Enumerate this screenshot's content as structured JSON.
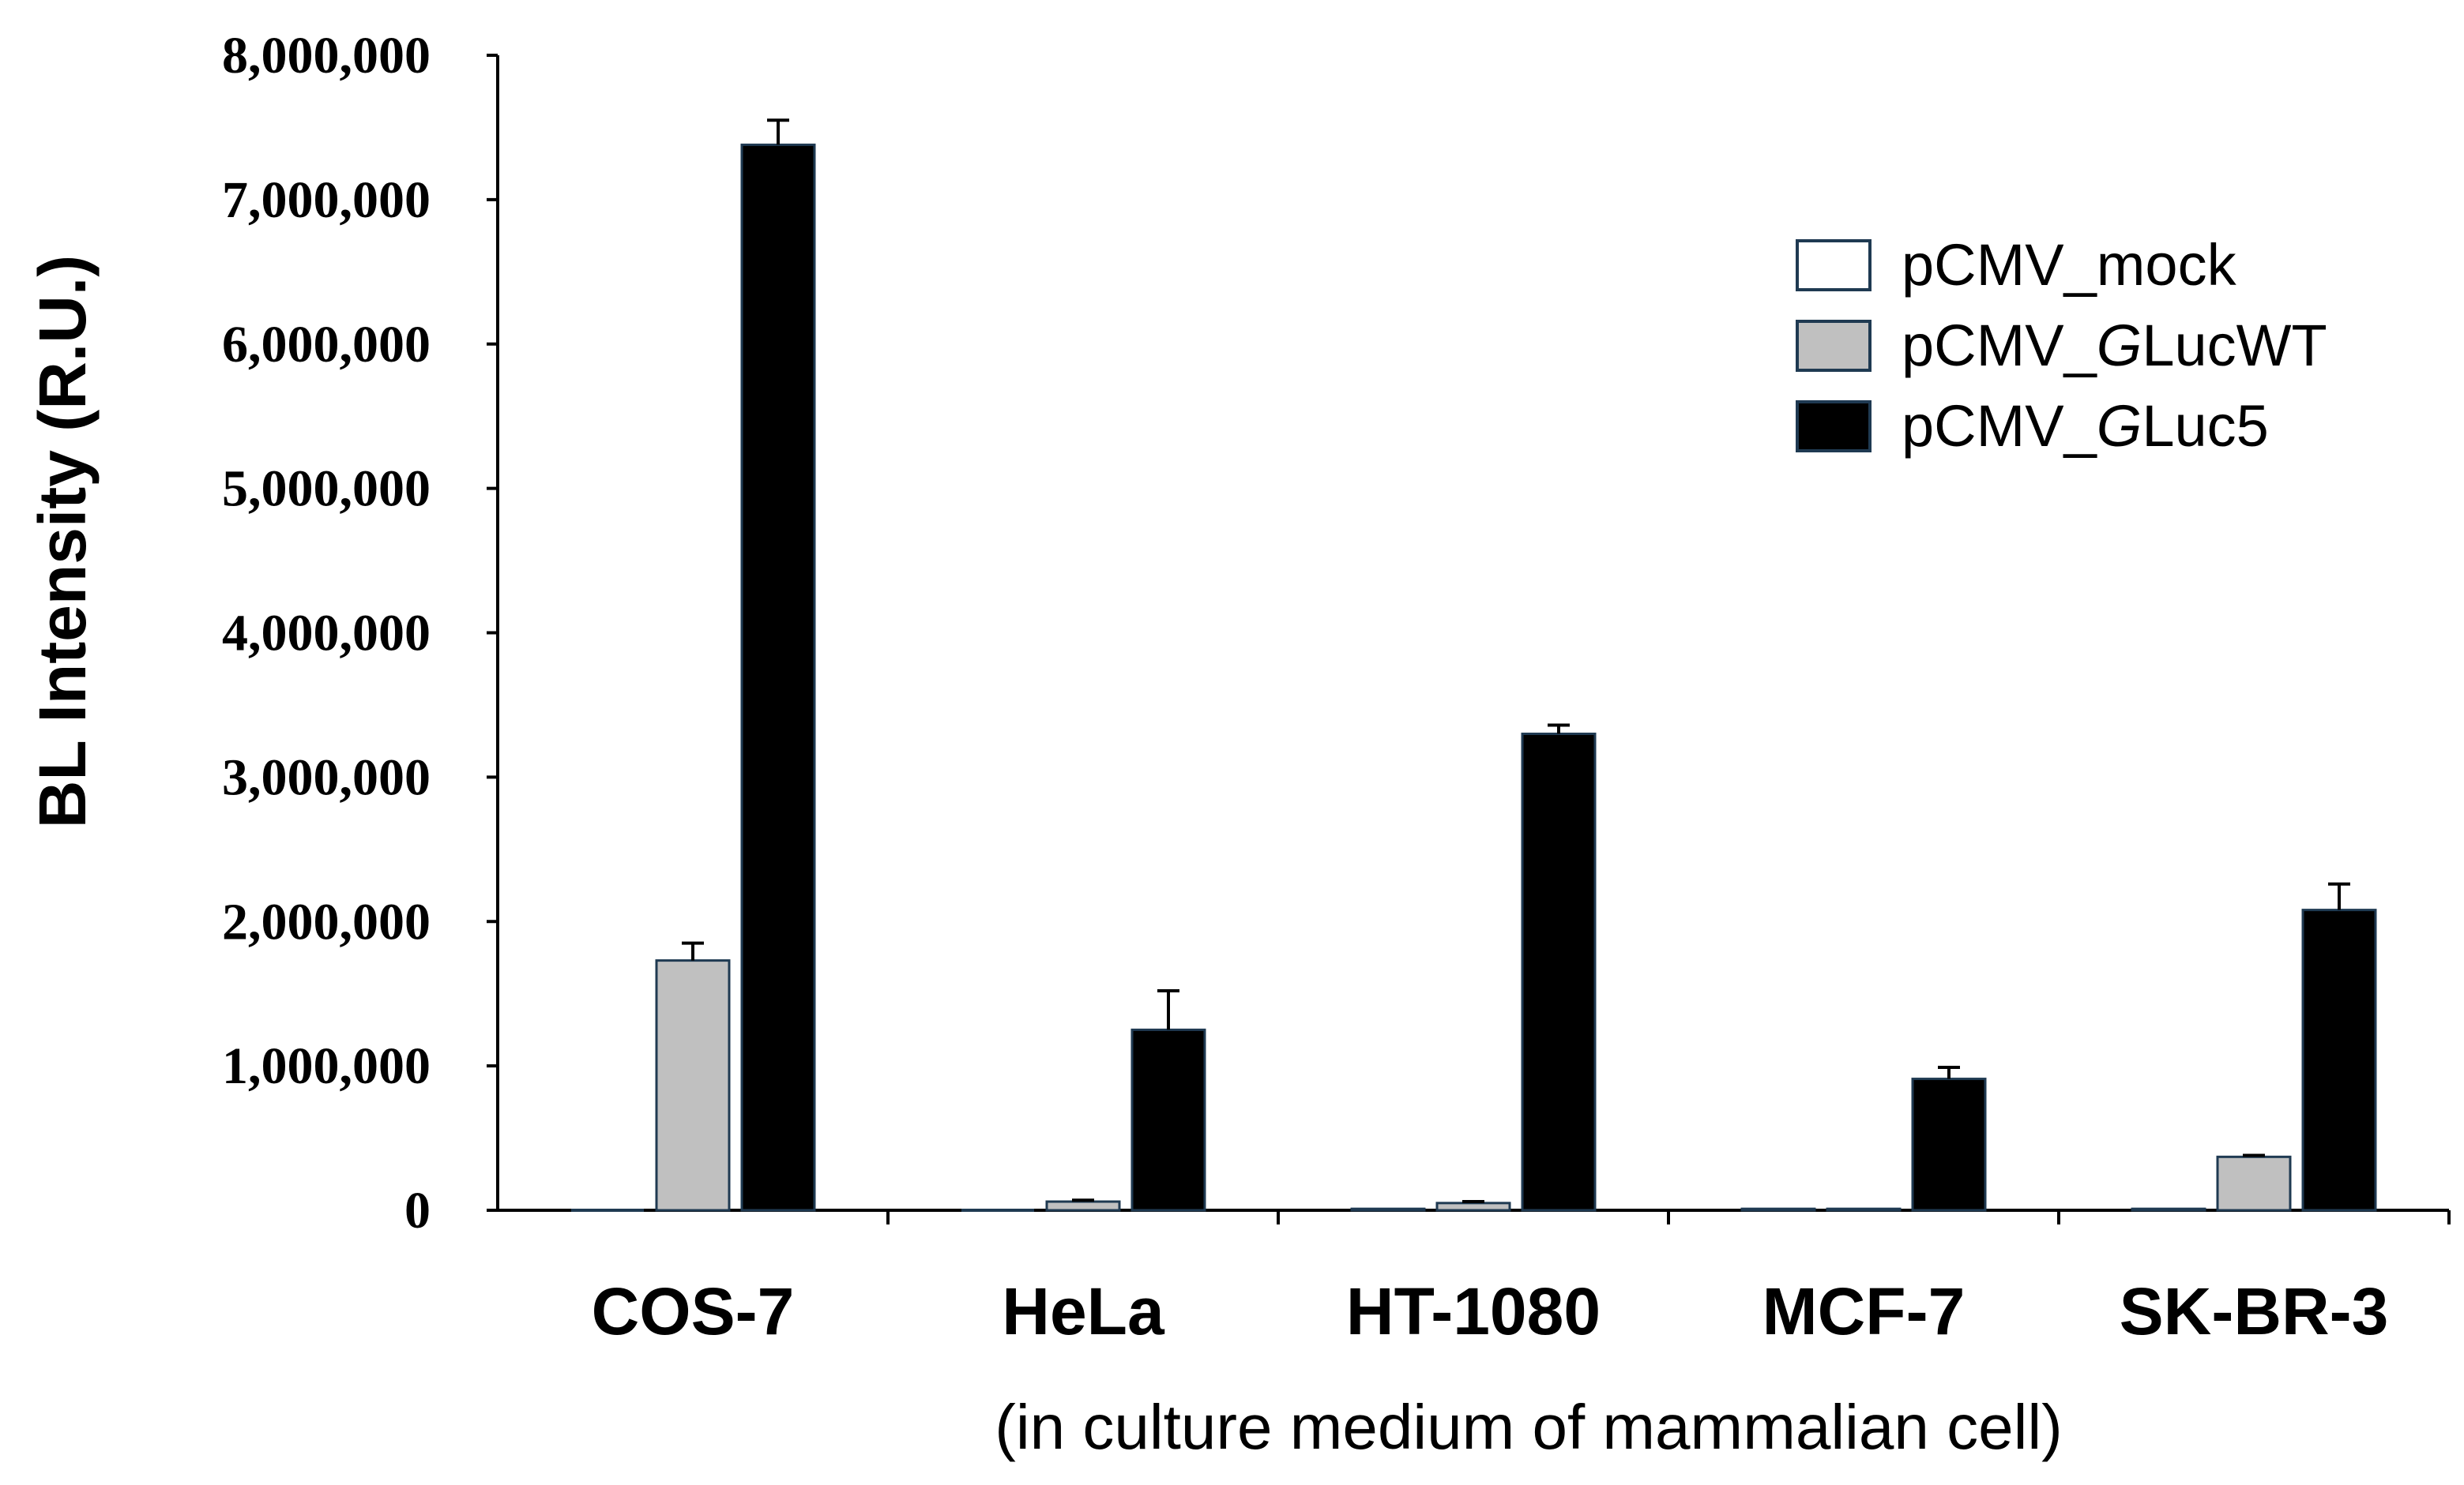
{
  "chart_data": {
    "type": "bar",
    "title": "",
    "ylabel": "BL Intensity (R.U.)",
    "xlabel": "(in culture medium of mammalian cell)",
    "ylim": [
      0,
      8000000
    ],
    "yticks": [
      0,
      1000000,
      2000000,
      3000000,
      4000000,
      5000000,
      6000000,
      7000000,
      8000000
    ],
    "ytick_labels": [
      "0",
      "1,000,000",
      "2,000,000",
      "3,000,000",
      "4,000,000",
      "5,000,000",
      "6,000,000",
      "7,000,000",
      "8,000,000"
    ],
    "categories": [
      "COS-7",
      "HeLa",
      "HT-1080",
      "MCF-7",
      "SK-BR-3"
    ],
    "series": [
      {
        "name": "pCMV_mock",
        "legend_prefix": "pCMV_",
        "legend_italic": "",
        "legend_suffix": "mock",
        "color": "#ffffff",
        "stroke": "#1f3a52",
        "values": [
          0,
          0,
          10000,
          10000,
          10000
        ],
        "errors": [
          0,
          0,
          0,
          0,
          0
        ]
      },
      {
        "name": "pCMV_GLucWT",
        "legend_prefix": "pCMV_",
        "legend_italic": "G",
        "legend_suffix": "LucWT",
        "color": "#c0c0c0",
        "stroke": "#1f3a52",
        "values": [
          1730000,
          60000,
          50000,
          10000,
          370000
        ],
        "errors": [
          120000,
          10000,
          10000,
          0,
          10000
        ]
      },
      {
        "name": "pCMV_GLuc5",
        "legend_prefix": "pCMV_",
        "legend_italic": "G",
        "legend_suffix": "Luc5",
        "color": "#000000",
        "stroke": "#1f3a52",
        "values": [
          7380000,
          1250000,
          3300000,
          910000,
          2080000
        ],
        "errors": [
          170000,
          270000,
          60000,
          80000,
          180000
        ]
      }
    ],
    "legend_position": "top-right",
    "grid": false
  }
}
